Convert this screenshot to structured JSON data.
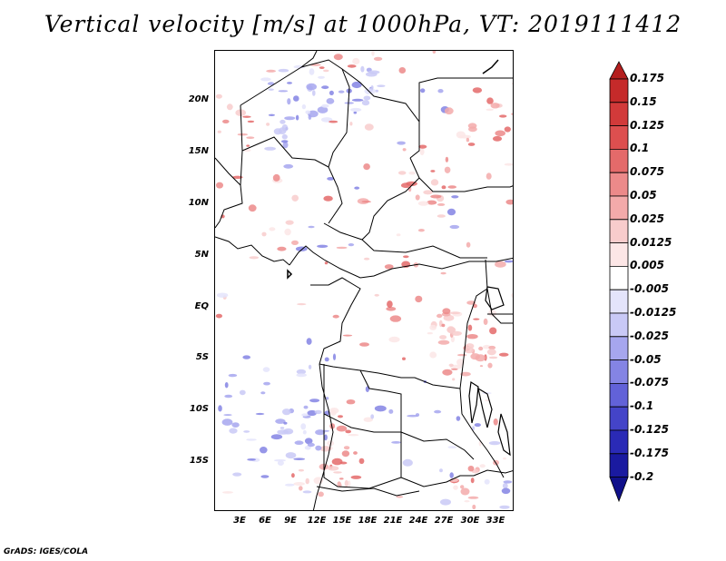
{
  "title": "Vertical velocity [m/s] at 1000hPa, VT: 2019111412",
  "footer": "GrADS: IGES/COLA",
  "map": {
    "lat_labels": [
      "20N",
      "15N",
      "10N",
      "5N",
      "EQ",
      "5S",
      "10S",
      "15S"
    ],
    "lon_labels": [
      "3E",
      "6E",
      "9E",
      "12E",
      "15E",
      "18E",
      "21E",
      "24E",
      "27E",
      "30E",
      "33E"
    ]
  },
  "colorbar": {
    "labels": [
      "0.175",
      "0.15",
      "0.125",
      "0.1",
      "0.075",
      "0.05",
      "0.025",
      "0.0125",
      "0.005",
      "-0.005",
      "-0.0125",
      "-0.025",
      "-0.05",
      "-0.075",
      "-0.1",
      "-0.125",
      "-0.175",
      "-0.2"
    ],
    "colors": [
      "#b41e1e",
      "#c52a2a",
      "#d23a3a",
      "#dd4f4f",
      "#e46a6a",
      "#ec8a8a",
      "#f3aaaa",
      "#f8cccc",
      "#fce6e6",
      "#ffffff",
      "#e4e4fb",
      "#c9c9f6",
      "#a6a6ee",
      "#8484e4",
      "#6262d8",
      "#4444c8",
      "#2a2ab6",
      "#1a1aa0",
      "#10108a"
    ]
  }
}
